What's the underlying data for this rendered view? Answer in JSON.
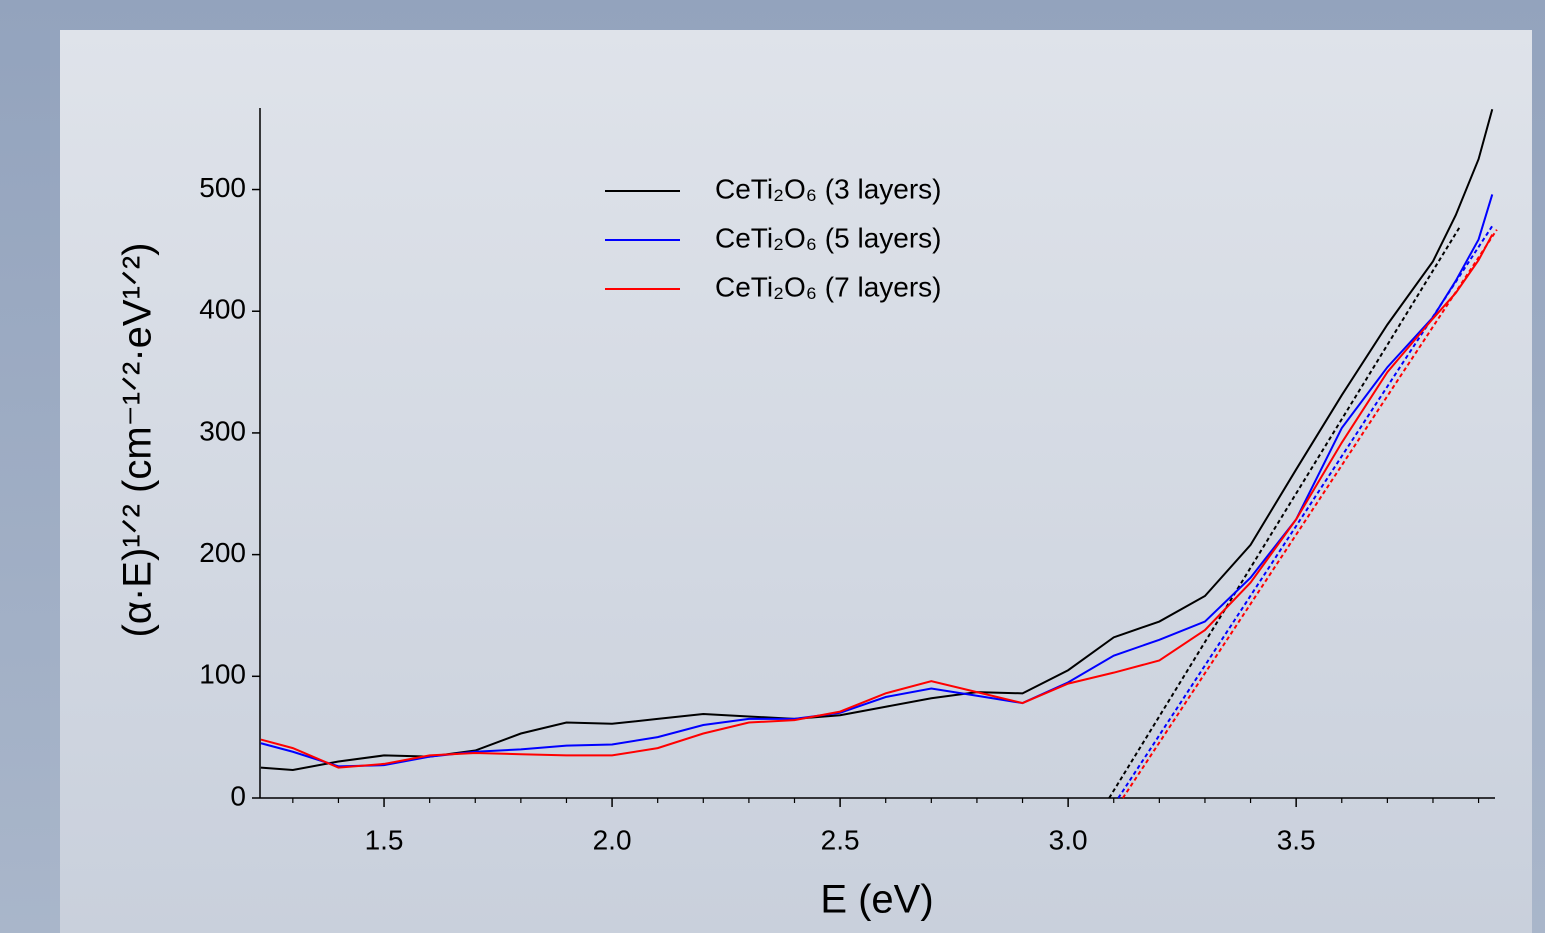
{
  "chart_data": {
    "type": "line",
    "x_label": "E (eV)",
    "y_label": "(α·E)¹ᐟ² (cm⁻¹ᐟ²·eV¹ᐟ²)",
    "x": [
      1.23,
      1.3,
      1.4,
      1.5,
      1.6,
      1.7,
      1.8,
      1.9,
      2.0,
      2.1,
      2.2,
      2.3,
      2.4,
      2.5,
      2.6,
      2.7,
      2.8,
      2.9,
      3.0,
      3.1,
      3.2,
      3.3,
      3.4,
      3.5,
      3.6,
      3.7,
      3.8,
      3.85,
      3.9,
      3.93
    ],
    "series": [
      {
        "name": "CeTi₂O₆ (3 layers)",
        "color": "#000000",
        "values": [
          25,
          23,
          30,
          35,
          34,
          39,
          53,
          62,
          61,
          65,
          69,
          67,
          65,
          68,
          75,
          82,
          87,
          86,
          105,
          132,
          145,
          166,
          208,
          270,
          331,
          389,
          441,
          479,
          525,
          566
        ]
      },
      {
        "name": "CeTi₂O₆ (5 layers)",
        "color": "#0000ff",
        "values": [
          45,
          38,
          26,
          27,
          34,
          38,
          40,
          43,
          44,
          50,
          60,
          65,
          65,
          70,
          83,
          90,
          84,
          78,
          95,
          117,
          130,
          145,
          181,
          229,
          304,
          354,
          395,
          425,
          459,
          496
        ]
      },
      {
        "name": "CeTi₂O₆ (7 layers)",
        "color": "#ff0000",
        "values": [
          48,
          41,
          25,
          28,
          35,
          37,
          36,
          35,
          35,
          41,
          53,
          62,
          64,
          71,
          86,
          96,
          87,
          78,
          94,
          103,
          113,
          138,
          177,
          229,
          292,
          350,
          394,
          415,
          442,
          463
        ]
      }
    ],
    "tangents": [
      {
        "color": "#000000",
        "x": [
          3.09,
          3.86
        ],
        "values": [
          0,
          470
        ]
      },
      {
        "color": "#0000ff",
        "x": [
          3.11,
          3.93
        ],
        "values": [
          0,
          470
        ]
      },
      {
        "color": "#ff0000",
        "x": [
          3.12,
          3.94
        ],
        "values": [
          0,
          467
        ]
      }
    ],
    "xlim": [
      1.228,
      3.936
    ],
    "ylim": [
      0,
      567
    ],
    "xticks": [
      1.5,
      {
        "value": 2,
        "label": "2.0"
      },
      2.5,
      {
        "value": 3,
        "label": "3.0"
      },
      3.5
    ],
    "xminorticks": [
      1.3,
      1.4,
      1.6,
      1.7,
      1.8,
      1.9,
      2.1,
      2.2,
      2.3,
      2.4,
      2.6,
      2.7,
      2.8,
      2.9,
      3.1,
      3.2,
      3.3,
      3.4,
      3.6,
      3.7,
      3.8,
      3.9
    ],
    "yticks": [
      0,
      100,
      200,
      300,
      400,
      500
    ]
  }
}
